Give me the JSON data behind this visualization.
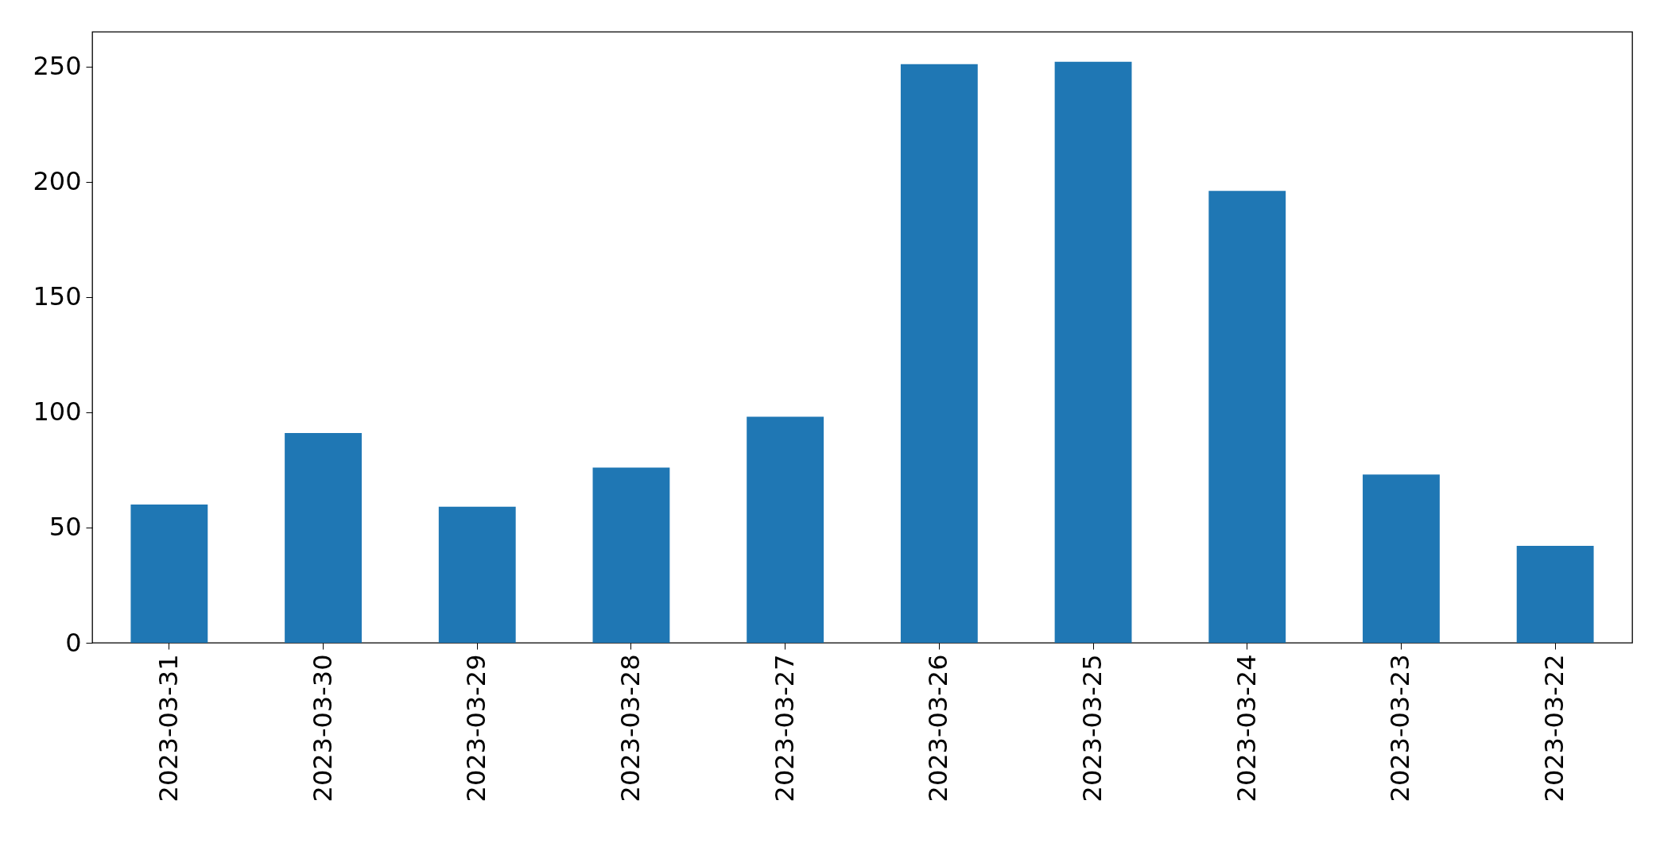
{
  "chart_data": {
    "type": "bar",
    "categories": [
      "2023-03-31",
      "2023-03-30",
      "2023-03-29",
      "2023-03-28",
      "2023-03-27",
      "2023-03-26",
      "2023-03-25",
      "2023-03-24",
      "2023-03-23",
      "2023-03-22"
    ],
    "values": [
      60,
      91,
      59,
      76,
      98,
      251,
      252,
      196,
      73,
      42
    ],
    "color": "#1f77b4",
    "ylim": [
      0,
      265
    ],
    "yticks": [
      0,
      50,
      100,
      150,
      200,
      250
    ],
    "grid": false
  }
}
